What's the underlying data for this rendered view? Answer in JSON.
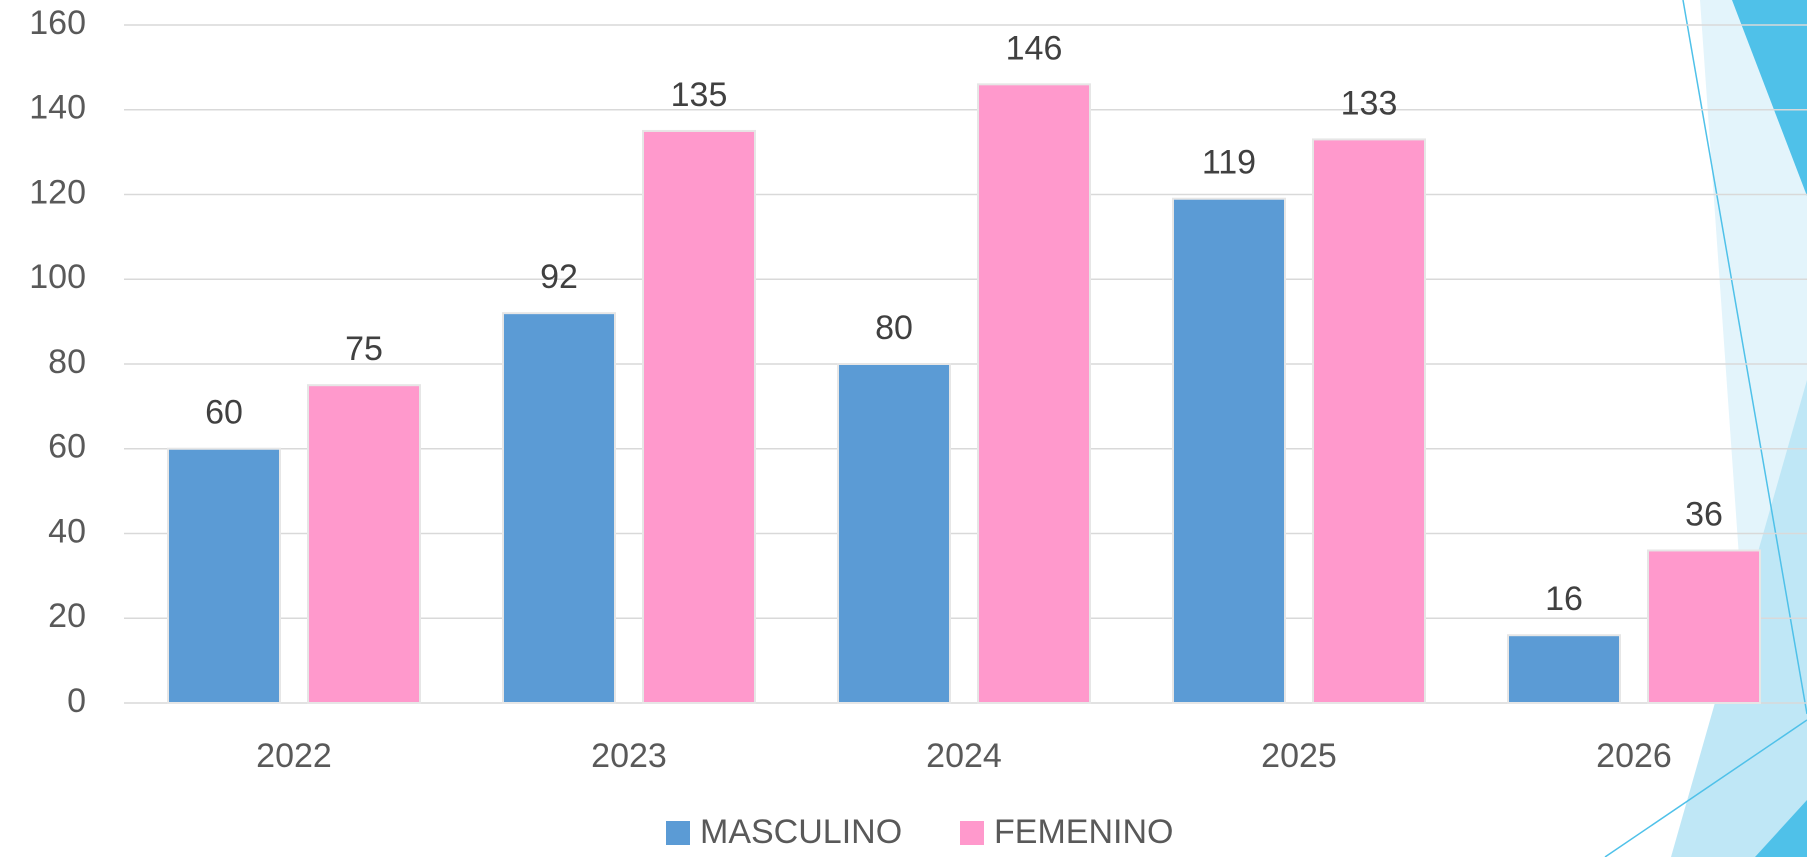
{
  "chart_data": {
    "type": "bar",
    "categories": [
      "2022",
      "2023",
      "2024",
      "2025",
      "2026"
    ],
    "series": [
      {
        "name": "MASCULINO",
        "color": "#5b9bd5",
        "values": [
          60,
          92,
          80,
          119,
          16
        ]
      },
      {
        "name": "FEMENINO",
        "color": "#ff99cc",
        "values": [
          75,
          135,
          146,
          133,
          36
        ]
      }
    ],
    "ylim": [
      0,
      160
    ],
    "yticks": [
      0,
      20,
      40,
      60,
      80,
      100,
      120,
      140,
      160
    ],
    "grid": true,
    "legend": "bottom"
  }
}
